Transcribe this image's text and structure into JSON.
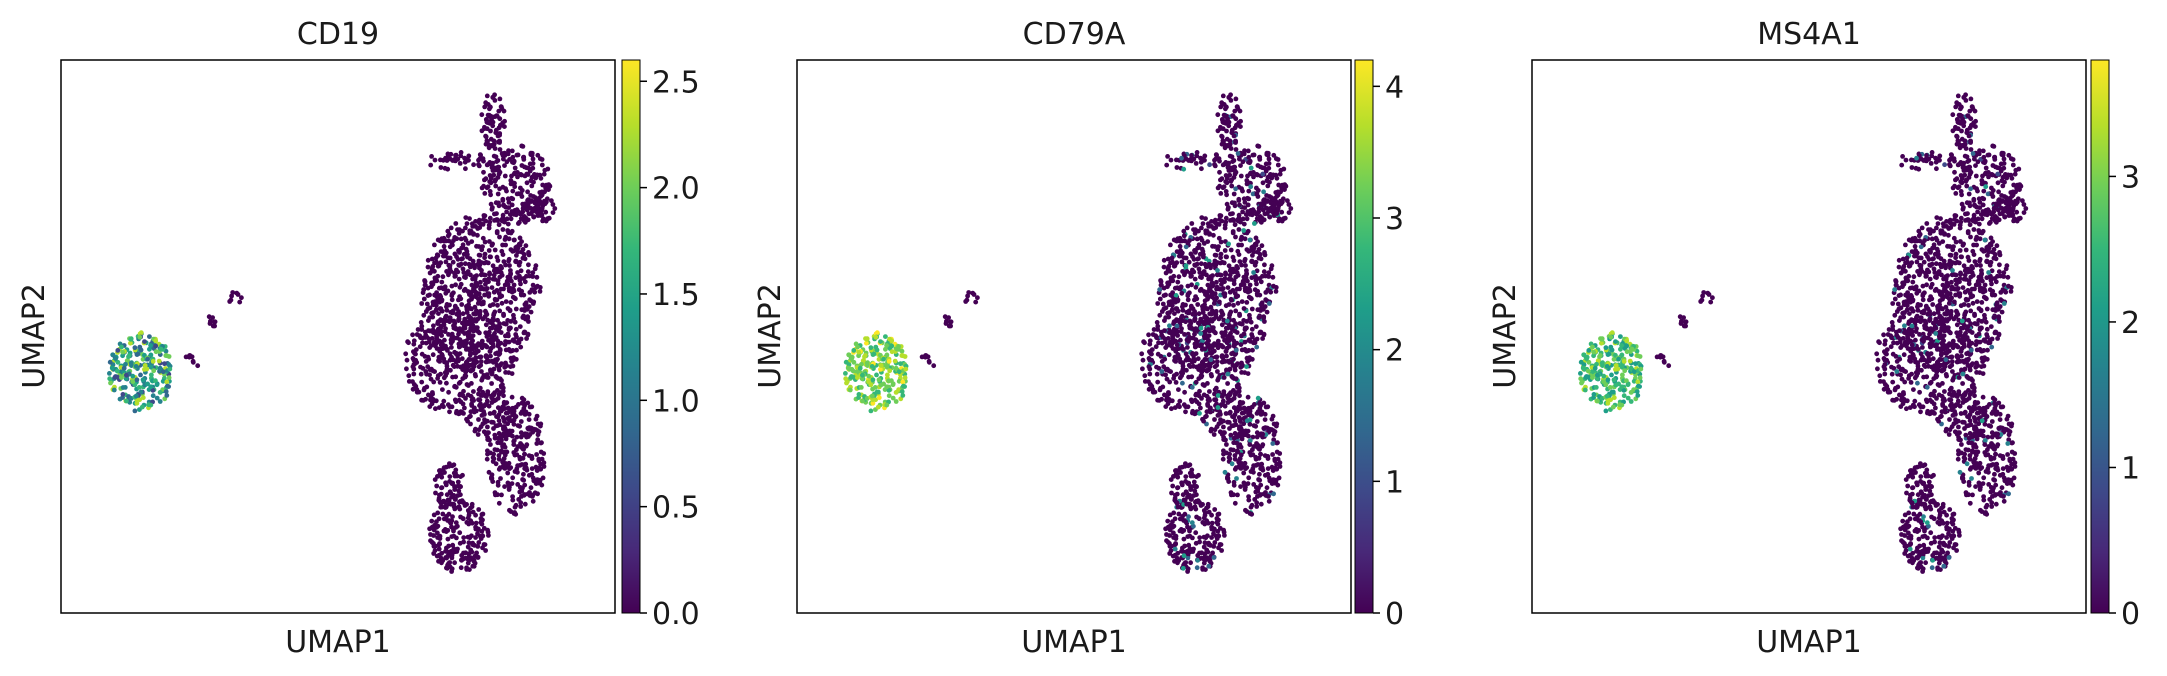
{
  "chart_data": [
    {
      "type": "scatter",
      "title": "CD19",
      "xlabel": "UMAP1",
      "ylabel": "UMAP2",
      "colorbar": {
        "min": 0,
        "max": 2.6,
        "ticks": [
          0.0,
          0.5,
          1.0,
          1.5,
          2.0,
          2.5
        ],
        "tick_labels": [
          "0.0",
          "0.5",
          "1.0",
          "1.5",
          "2.0",
          "2.5"
        ]
      },
      "b_cell_cluster_expression": "mixed 0.5-2.5",
      "other_clusters_expression": 0.0
    },
    {
      "type": "scatter",
      "title": "CD79A",
      "xlabel": "UMAP1",
      "ylabel": "UMAP2",
      "colorbar": {
        "min": 0,
        "max": 4.2,
        "ticks": [
          0,
          1,
          2,
          3,
          4
        ],
        "tick_labels": [
          "0",
          "1",
          "2",
          "3",
          "4"
        ]
      },
      "b_cell_cluster_expression": "high 2.5-4",
      "other_clusters_expression": "mostly 0, sparse 1-2.5"
    },
    {
      "type": "scatter",
      "title": "MS4A1",
      "xlabel": "UMAP1",
      "ylabel": "UMAP2",
      "colorbar": {
        "min": 0,
        "max": 3.8,
        "ticks": [
          0,
          1,
          2,
          3
        ],
        "tick_labels": [
          "0",
          "1",
          "2",
          "3"
        ]
      },
      "b_cell_cluster_expression": "high 2-3.5",
      "other_clusters_expression": "mostly 0, sparse 1-2"
    }
  ],
  "colors": {
    "viridis": [
      "#440154",
      "#482878",
      "#3e4989",
      "#31688e",
      "#26828e",
      "#1f9e89",
      "#35b779",
      "#6ece58",
      "#b5de2b",
      "#fde725"
    ],
    "axis": "#000000"
  }
}
